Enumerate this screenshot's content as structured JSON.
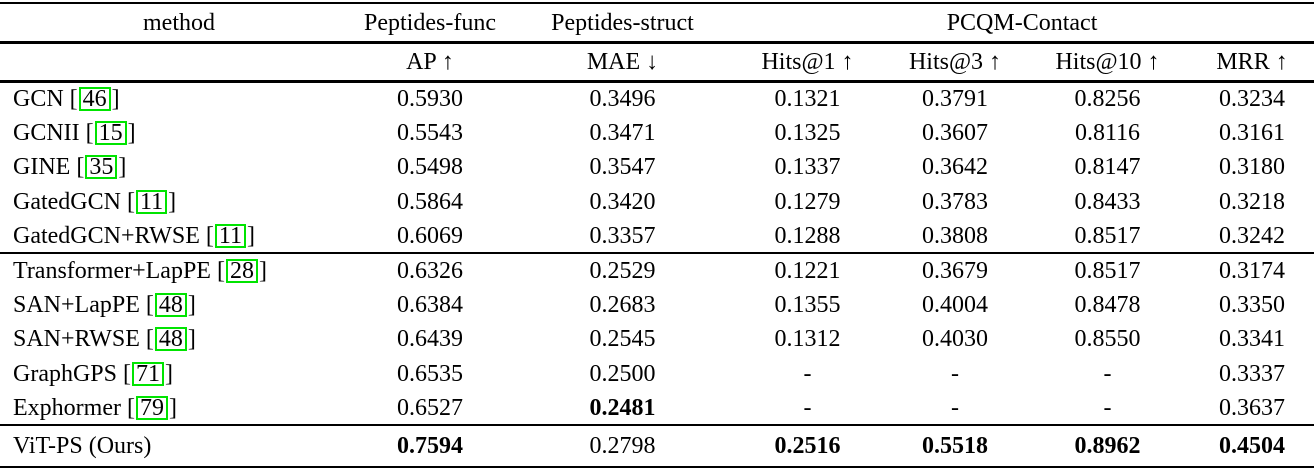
{
  "colors": {
    "citation_box": "#00e400",
    "rule": "#000000",
    "text": "#000000",
    "background": "#ffffff"
  },
  "table": {
    "bracket_open": "[",
    "bracket_close": "]",
    "header_row1": {
      "method": "method",
      "peptides_func": "Peptides-func",
      "peptides_struct": "Peptides-struct",
      "pcqm_contact": "PCQM-Contact"
    },
    "header_row2": {
      "ap": "AP ↑",
      "mae": "MAE ↓",
      "hits1": "Hits@1 ↑",
      "hits3": "Hits@3 ↑",
      "hits10": "Hits@10 ↑",
      "mrr": "MRR ↑"
    },
    "group1": [
      {
        "method": "GCN",
        "cite": "46",
        "cells": [
          "0.5930",
          "0.3496",
          "0.1321",
          "0.3791",
          "0.8256",
          "0.3234"
        ]
      },
      {
        "method": "GCNII",
        "cite": "15",
        "cells": [
          "0.5543",
          "0.3471",
          "0.1325",
          "0.3607",
          "0.8116",
          "0.3161"
        ]
      },
      {
        "method": "GINE",
        "cite": "35",
        "cells": [
          "0.5498",
          "0.3547",
          "0.1337",
          "0.3642",
          "0.8147",
          "0.3180"
        ]
      },
      {
        "method": "GatedGCN",
        "cite": "11",
        "cells": [
          "0.5864",
          "0.3420",
          "0.1279",
          "0.3783",
          "0.8433",
          "0.3218"
        ]
      },
      {
        "method": "GatedGCN+RWSE",
        "cite": "11",
        "cells": [
          "0.6069",
          "0.3357",
          "0.1288",
          "0.3808",
          "0.8517",
          "0.3242"
        ]
      }
    ],
    "group2": [
      {
        "method": "Transformer+LapPE",
        "cite": "28",
        "cells": [
          "0.6326",
          "0.2529",
          "0.1221",
          "0.3679",
          "0.8517",
          "0.3174"
        ]
      },
      {
        "method": "SAN+LapPE",
        "cite": "48",
        "cells": [
          "0.6384",
          "0.2683",
          "0.1355",
          "0.4004",
          "0.8478",
          "0.3350"
        ]
      },
      {
        "method": "SAN+RWSE",
        "cite": "48",
        "cells": [
          "0.6439",
          "0.2545",
          "0.1312",
          "0.4030",
          "0.8550",
          "0.3341"
        ]
      },
      {
        "method": "GraphGPS",
        "cite": "71",
        "cells": [
          "0.6535",
          "0.2500",
          "-",
          "-",
          "-",
          "0.3337"
        ]
      },
      {
        "method": "Exphormer",
        "cite": "79",
        "cells": [
          "0.6527",
          "0.2481",
          "-",
          "-",
          "-",
          "0.3637"
        ]
      }
    ],
    "final_row": {
      "method": "ViT-PS (Ours)",
      "cells": [
        "0.7594",
        "0.2798",
        "0.2516",
        "0.5518",
        "0.8962",
        "0.4504"
      ]
    }
  }
}
